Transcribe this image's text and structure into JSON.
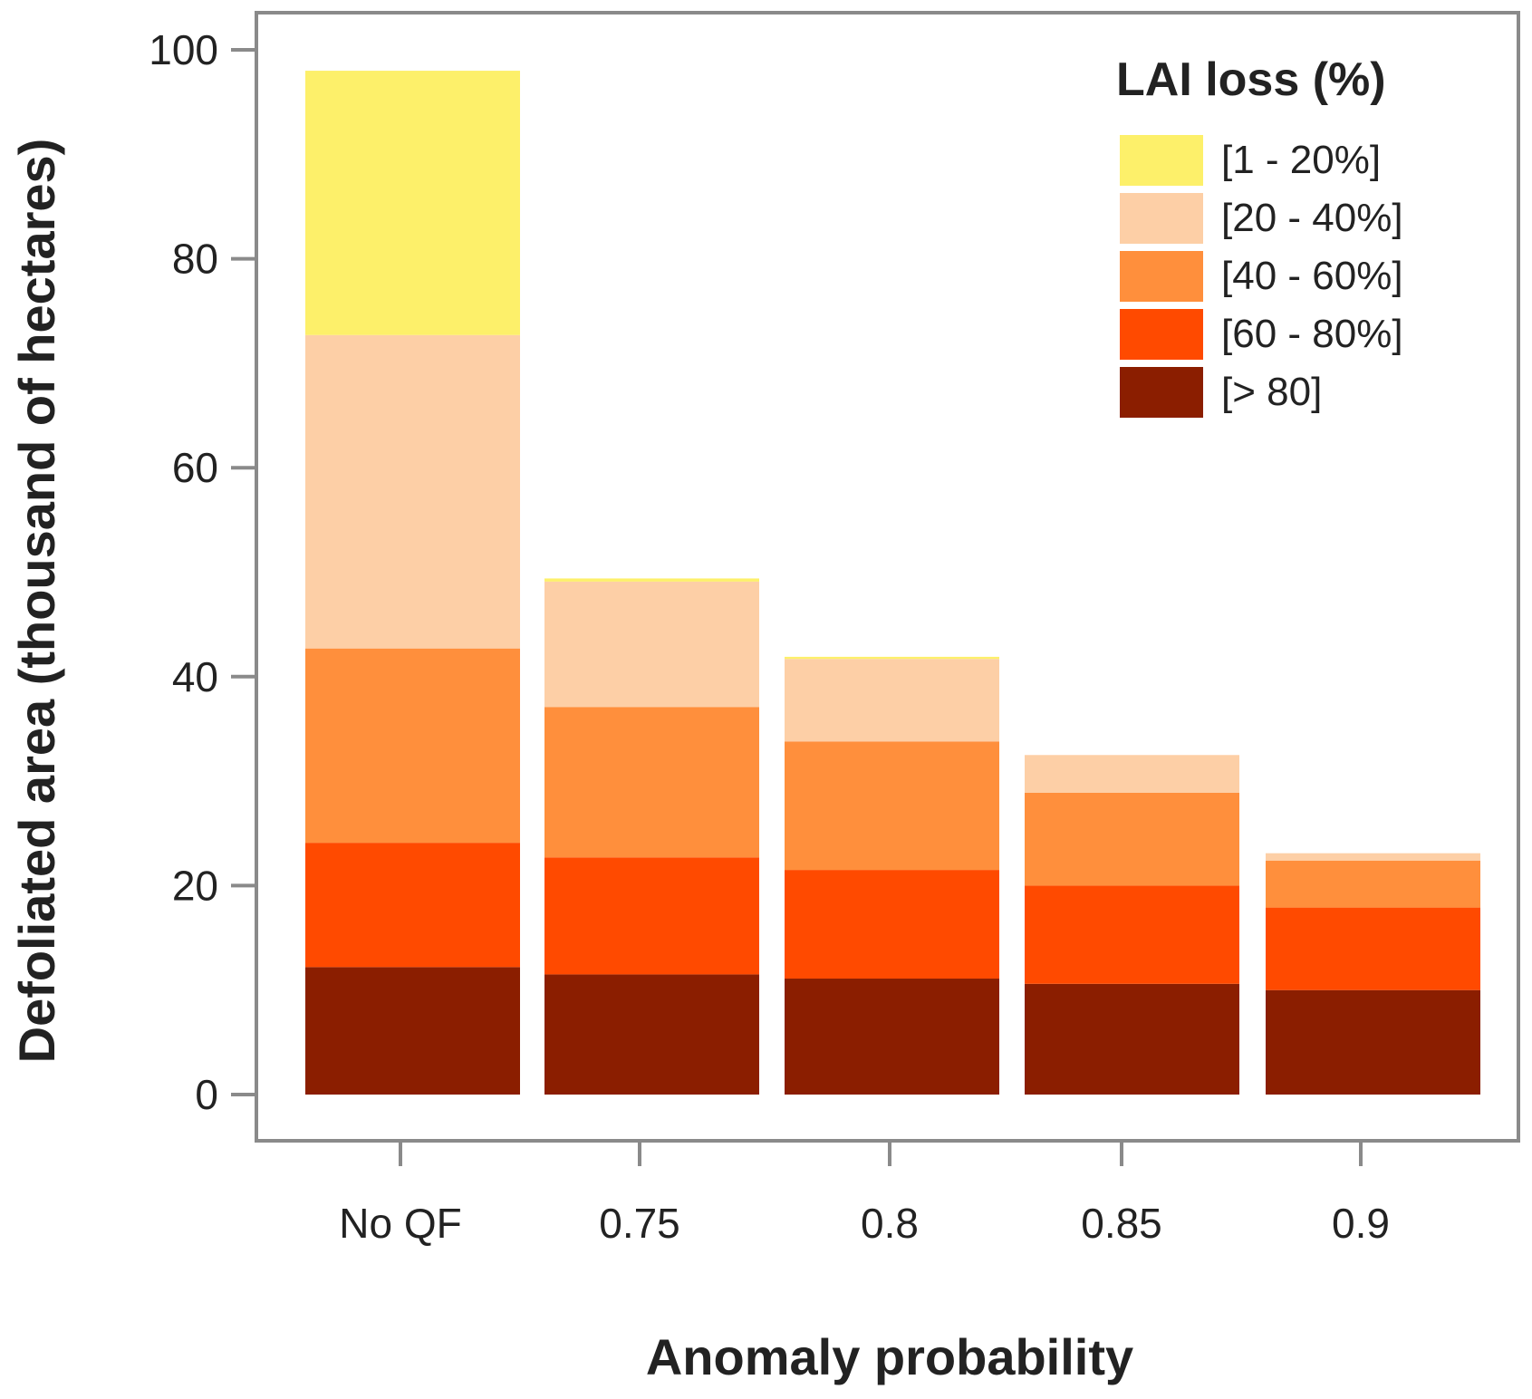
{
  "chart_data": {
    "type": "bar",
    "stacked": true,
    "xlabel": "Anomaly probability",
    "ylabel": "Defoliated area (thousand of hectares)",
    "categories": [
      "No QF",
      "0.75",
      "0.8",
      "0.85",
      "0.9"
    ],
    "ylim": [
      0,
      100
    ],
    "yticks": [
      0,
      20,
      40,
      60,
      80,
      100
    ],
    "grid": false,
    "legend": {
      "title": "LAI loss  (%)",
      "position": "top-right"
    },
    "series": [
      {
        "name": "[> 80]",
        "color": "#8b1e00",
        "values": [
          12.2,
          11.5,
          11.1,
          10.6,
          10.0
        ]
      },
      {
        "name": "[60 - 80%]",
        "color": "#ff4a00",
        "values": [
          11.9,
          11.2,
          10.4,
          9.4,
          7.9
        ]
      },
      {
        "name": "[40 - 60%]",
        "color": "#ff8f3c",
        "values": [
          18.6,
          14.4,
          12.3,
          8.9,
          4.5
        ]
      },
      {
        "name": "[20 - 40%]",
        "color": "#fdcfa6",
        "values": [
          30.0,
          12.0,
          7.9,
          3.6,
          0.7
        ]
      },
      {
        "name": "[1 - 20%]",
        "color": "#fdf06a",
        "values": [
          25.3,
          0.3,
          0.2,
          0.0,
          0.0
        ]
      }
    ]
  }
}
